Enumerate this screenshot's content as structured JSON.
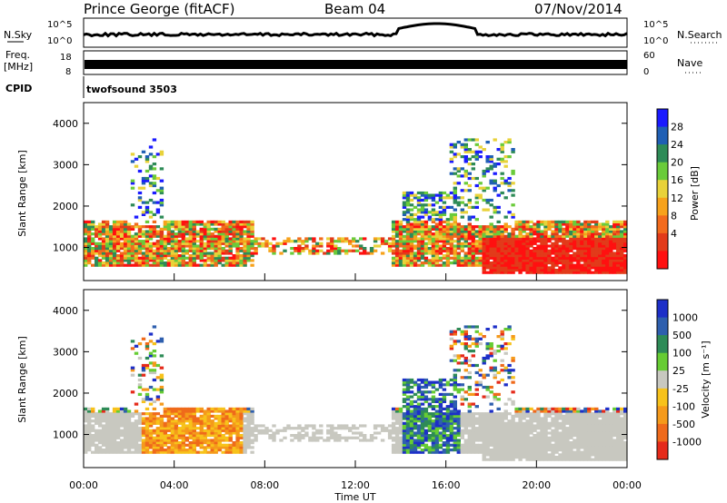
{
  "header": {
    "title": "Prince George (fitACF)",
    "beam": "Beam 04",
    "date": "07/Nov/2014"
  },
  "strip_panels": {
    "nsky_label": "N.Sky",
    "nsky_ticks": [
      "10^5",
      "10^0"
    ],
    "nsearch_label": "N.Search",
    "freq_label_1": "Freq.",
    "freq_label_2": "[MHz]",
    "freq_ticks": [
      "18",
      "8"
    ],
    "nave_label": "Nave",
    "nave_ticks": [
      "60",
      "0"
    ],
    "cpid_label": "CPID",
    "cpid_value": "twofsound 3503"
  },
  "chart_data": [
    {
      "type": "heatmap",
      "name": "power",
      "ylabel": "Slant Range [km]",
      "xlabel": "",
      "ylim": [
        200,
        4500
      ],
      "y_ticks": [
        "1000",
        "2000",
        "3000",
        "4000"
      ],
      "colorbar": {
        "label": "Power [dB]",
        "ticks": [
          "4",
          "8",
          "12",
          "16",
          "20",
          "24",
          "28"
        ],
        "colors": [
          "#1a1aff",
          "#1f5fb4",
          "#2e8b57",
          "#6acb3a",
          "#e8d23a",
          "#f7a21b",
          "#f26b1d",
          "#e23b1a",
          "#ff1010"
        ]
      }
    },
    {
      "type": "heatmap",
      "name": "velocity",
      "ylabel": "Slant Range [km]",
      "xlabel": "Time UT",
      "ylim": [
        200,
        4500
      ],
      "y_ticks": [
        "1000",
        "2000",
        "3000",
        "4000"
      ],
      "x_ticks": [
        "00:00",
        "04:00",
        "08:00",
        "12:00",
        "16:00",
        "20:00",
        "00:00"
      ],
      "colorbar": {
        "label": "Velocity [m s⁻¹]",
        "ticks": [
          "1000",
          "500",
          "100",
          "25",
          "-25",
          "-100",
          "-500",
          "-1000"
        ],
        "colors": [
          "#1d2fc8",
          "#2e5fae",
          "#2e8b57",
          "#66cc33",
          "#c8c8c0",
          "#f7c21b",
          "#f59a1b",
          "#ef6a1b",
          "#e52a1a"
        ]
      }
    }
  ]
}
